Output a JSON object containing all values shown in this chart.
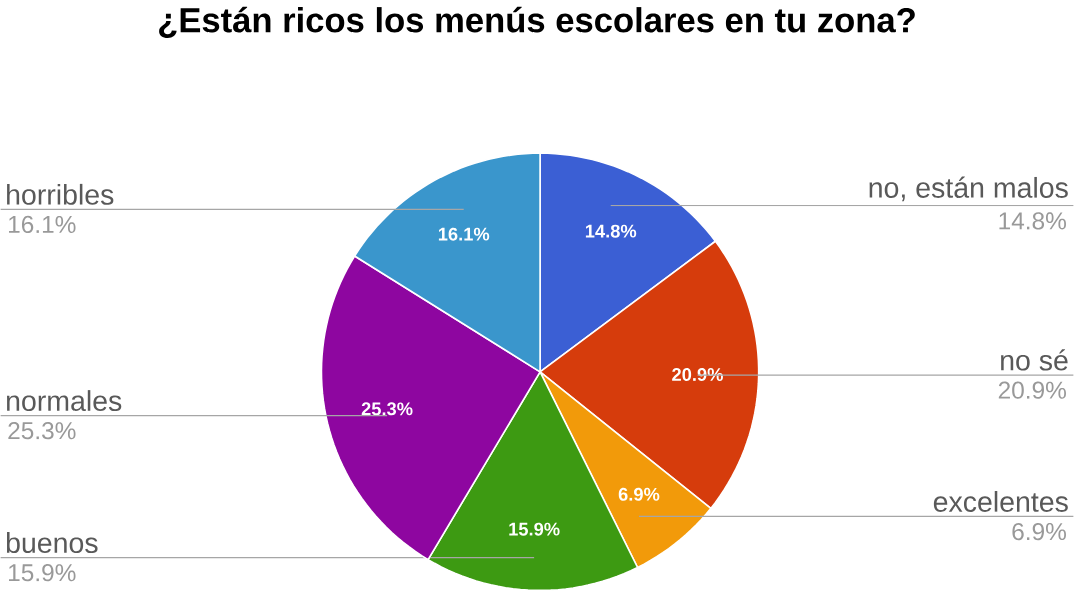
{
  "chart_data": {
    "type": "pie",
    "title": "¿Están ricos los menús escolares en tu zona?",
    "categories": [
      "no, están malos",
      "no sé",
      "excelentes",
      "buenos",
      "normales",
      "horribles"
    ],
    "values": [
      14.8,
      20.9,
      6.9,
      15.9,
      25.3,
      16.1
    ],
    "value_labels": [
      "14.8%",
      "20.9%",
      "6.9%",
      "15.9%",
      "25.3%",
      "16.1%"
    ],
    "colors": [
      "#3b5fd4",
      "#d63c0c",
      "#f29a0a",
      "#3d9a12",
      "#8e06a0",
      "#3a96cc"
    ]
  }
}
